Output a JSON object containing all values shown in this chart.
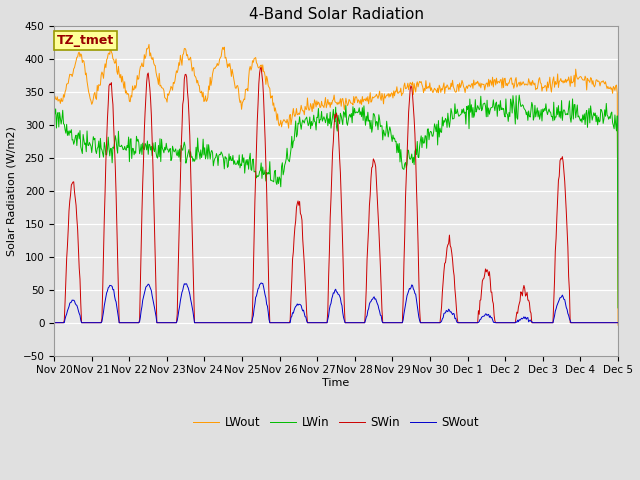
{
  "title": "4-Band Solar Radiation",
  "xlabel": "Time",
  "ylabel": "Solar Radiation (W/m2)",
  "ylim": [
    -50,
    450
  ],
  "annotation_text": "TZ_tmet",
  "legend_labels": [
    "SWin",
    "SWout",
    "LWin",
    "LWout"
  ],
  "line_colors": [
    "#cc0000",
    "#0000cc",
    "#00bb00",
    "#ff9900"
  ],
  "background_color": "#e0e0e0",
  "plot_bg_color": "#e8e8e8",
  "x_tick_labels": [
    "Nov 20",
    "Nov 21",
    "Nov 22",
    "Nov 23",
    "Nov 24",
    "Nov 25",
    "Nov 26",
    "Nov 27",
    "Nov 28",
    "Nov 29",
    "Nov 30",
    "Dec 1",
    "Dec 2",
    "Dec 3",
    "Dec 4",
    "Dec 5"
  ],
  "title_fontsize": 11,
  "axis_fontsize": 8,
  "tick_fontsize": 7.5,
  "annotation_fontsize": 9
}
